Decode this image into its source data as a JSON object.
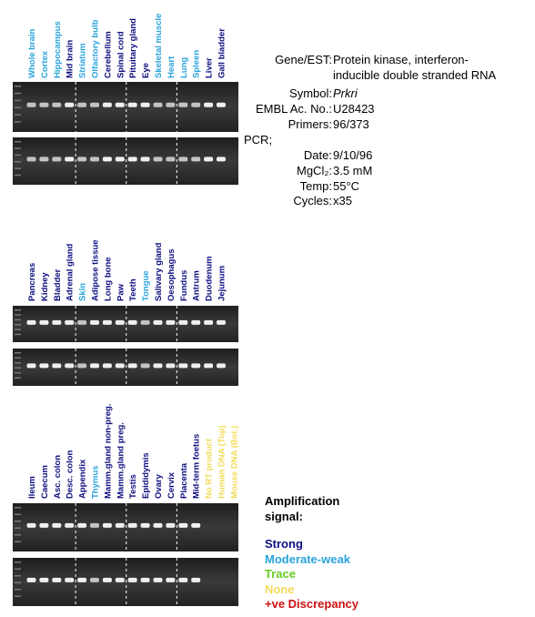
{
  "panels": [
    {
      "lanes": [
        {
          "label": "Whole brain",
          "color": "#2aa4dc"
        },
        {
          "label": "Cortex",
          "color": "#2aa4dc"
        },
        {
          "label": "Hippocampus",
          "color": "#2aa4dc"
        },
        {
          "label": "Mid brain",
          "color": "#0d0d80"
        },
        {
          "label": "Striatum",
          "color": "#2aa4dc"
        },
        {
          "label": "Olfactory bulb",
          "color": "#2aa4dc"
        },
        {
          "label": "Cerebellum",
          "color": "#0d0d80"
        },
        {
          "label": "Spinal cord",
          "color": "#0d0d80"
        },
        {
          "label": "Pituitary gland",
          "color": "#0d0d80"
        },
        {
          "label": "Eye",
          "color": "#0d0d80"
        },
        {
          "label": "Skeletal muscle",
          "color": "#2aa4dc"
        },
        {
          "label": "Heart",
          "color": "#2aa4dc"
        },
        {
          "label": "Lung",
          "color": "#2aa4dc"
        },
        {
          "label": "Spleen",
          "color": "#2aa4dc"
        },
        {
          "label": "Liver",
          "color": "#0d0d80"
        },
        {
          "label": "Gall bladder",
          "color": "#0d0d80"
        }
      ]
    },
    {
      "lanes": [
        {
          "label": "Pancreas",
          "color": "#0d0d80"
        },
        {
          "label": "Kidney",
          "color": "#0d0d80"
        },
        {
          "label": "Bladder",
          "color": "#0d0d80"
        },
        {
          "label": "Adrenal gland",
          "color": "#0d0d80"
        },
        {
          "label": "Skin",
          "color": "#2aa4dc"
        },
        {
          "label": "Adipose tissue",
          "color": "#0d0d80"
        },
        {
          "label": "Long bone",
          "color": "#0d0d80"
        },
        {
          "label": "Paw",
          "color": "#0d0d80"
        },
        {
          "label": "Teeth",
          "color": "#0d0d80"
        },
        {
          "label": "Tongue",
          "color": "#2aa4dc"
        },
        {
          "label": "Salivary gland",
          "color": "#0d0d80"
        },
        {
          "label": "Oesophagus",
          "color": "#0d0d80"
        },
        {
          "label": "Fundus",
          "color": "#0d0d80"
        },
        {
          "label": "Antrum",
          "color": "#0d0d80"
        },
        {
          "label": "Duodenum",
          "color": "#0d0d80"
        },
        {
          "label": "Jejunum",
          "color": "#0d0d80"
        }
      ]
    },
    {
      "lanes": [
        {
          "label": "Ileum",
          "color": "#0d0d80"
        },
        {
          "label": "Caecum",
          "color": "#0d0d80"
        },
        {
          "label": "Asc. colon",
          "color": "#0d0d80"
        },
        {
          "label": "Desc. colon",
          "color": "#0d0d80"
        },
        {
          "label": "Appendix",
          "color": "#0d0d80"
        },
        {
          "label": "Thymus",
          "color": "#2aa4dc"
        },
        {
          "label": "Mamm.gland non-preg.",
          "color": "#0d0d80"
        },
        {
          "label": "Mamm.gland preg.",
          "color": "#0d0d80"
        },
        {
          "label": "Testis",
          "color": "#0d0d80"
        },
        {
          "label": "Epididymis",
          "color": "#0d0d80"
        },
        {
          "label": "Ovary",
          "color": "#0d0d80"
        },
        {
          "label": "Cervix",
          "color": "#0d0d80"
        },
        {
          "label": "Placenta",
          "color": "#0d0d80"
        },
        {
          "label": "Mid-term foetus",
          "color": "#0d0d80"
        },
        {
          "label": "No RT product",
          "color": "#f2dc5a"
        },
        {
          "label": "Human DNA (Top)",
          "color": "#f2dc5a"
        },
        {
          "label": "Mouse DNA (Bot.)",
          "color": "#f2dc5a"
        }
      ]
    }
  ],
  "info": {
    "gene_label": "Gene/EST:",
    "gene": "Protein kinase, interferon-inducible double stranded RNA",
    "symbol_label": "Symbol:",
    "symbol": "Prkri",
    "embl_label": "EMBL Ac. No.:",
    "embl": "U28423",
    "primers_label": "Primers:",
    "primers": "96/373",
    "pcr": "PCR;",
    "date_label": "Date:",
    "date": "9/10/96",
    "mgcl_label": "MgCl₂:",
    "mgcl": "3.5 mM",
    "temp_label": "Temp:",
    "temp": "55°C",
    "cycles_label": "Cycles:",
    "cycles": "x35"
  },
  "legend": {
    "title": "Amplification signal:",
    "items": [
      {
        "label": "Strong",
        "color": "#0d0d80"
      },
      {
        "label": "Moderate-weak",
        "color": "#2aa4dc"
      },
      {
        "label": "Trace",
        "color": "#66cc22"
      },
      {
        "label": "None",
        "color": "#f2dc5a"
      },
      {
        "label": "+ve Discrepancy",
        "color": "#cc1111"
      }
    ]
  }
}
